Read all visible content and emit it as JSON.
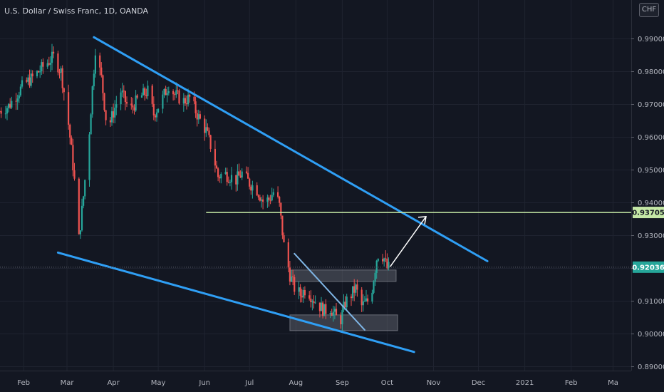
{
  "header": {
    "title": "U.S. Dollar / Swiss Franc, 1D, OANDA",
    "currency": "CHF"
  },
  "colors": {
    "background": "#131722",
    "up": "#26a69a",
    "down": "#ef5350",
    "trendline": "#2f9ff5",
    "level": "#c5e8a6",
    "last_price_badge": "#26a69a",
    "zone_fill": "#787b86"
  },
  "chart_data": {
    "type": "candlestick",
    "instrument": "U.S. Dollar / Swiss Franc",
    "timeframe": "1D",
    "source": "OANDA",
    "ylim": [
      0.887,
      1.0
    ],
    "y_ticks": [
      "0.99000",
      "0.98000",
      "0.97000",
      "0.96000",
      "0.95000",
      "0.94000",
      "0.93000",
      "0.92000",
      "0.91000",
      "0.90000",
      "0.89000"
    ],
    "x_ticks": [
      "Feb",
      "Mar",
      "Apr",
      "May",
      "Jun",
      "Jul",
      "Aug",
      "Sep",
      "Oct",
      "Nov",
      "Dec",
      "2021",
      "Feb",
      "Ma"
    ],
    "horizontal_level": {
      "value": 0.93705,
      "label": "0.93705"
    },
    "last_price": {
      "value": 0.92036,
      "label": "0.92036"
    },
    "trendlines": [
      {
        "name": "upper channel",
        "from": {
          "date": "2020-03-19",
          "price": 0.9905
        },
        "to": {
          "date": "2020-12-07",
          "price": 0.9222
        }
      },
      {
        "name": "lower channel",
        "from": {
          "date": "2020-02-24",
          "price": 0.9248
        },
        "to": {
          "date": "2020-10-19",
          "price": 0.8945
        }
      },
      {
        "name": "short downtrend",
        "from": {
          "date": "2020-07-31",
          "price": 0.9245
        },
        "to": {
          "date": "2020-09-16",
          "price": 0.9012
        }
      }
    ],
    "zones": [
      {
        "name": "upper demand zone",
        "x_from": "2020-07-28",
        "x_to": "2020-10-07",
        "y_from": 0.916,
        "y_to": 0.9195
      },
      {
        "name": "lower demand zone",
        "x_from": "2020-07-28",
        "x_to": "2020-10-08",
        "y_from": 0.901,
        "y_to": 0.9058
      }
    ],
    "projection_arrow": {
      "from": {
        "date": "2020-10-03",
        "price": 0.9205
      },
      "to": {
        "date": "2020-10-27",
        "price": 0.9358
      }
    },
    "ohlc_anchors": [
      [
        "2020-01-16",
        0.968
      ],
      [
        "2020-01-22",
        0.9695
      ],
      [
        "2020-02-01",
        0.976
      ],
      [
        "2020-02-08",
        0.9785
      ],
      [
        "2020-02-14",
        0.9815
      ],
      [
        "2020-02-21",
        0.9845
      ],
      [
        "2020-02-26",
        0.98
      ],
      [
        "2020-03-01",
        0.968
      ],
      [
        "2020-03-04",
        0.956
      ],
      [
        "2020-03-07",
        0.942
      ],
      [
        "2020-03-09",
        0.929
      ],
      [
        "2020-03-12",
        0.942
      ],
      [
        "2020-03-16",
        0.962
      ],
      [
        "2020-03-18",
        0.975
      ],
      [
        "2020-03-20",
        0.987
      ],
      [
        "2020-03-24",
        0.978
      ],
      [
        "2020-03-28",
        0.962
      ],
      [
        "2020-04-02",
        0.969
      ],
      [
        "2020-04-06",
        0.974
      ],
      [
        "2020-04-12",
        0.968
      ],
      [
        "2020-04-18",
        0.972
      ],
      [
        "2020-04-24",
        0.974
      ],
      [
        "2020-04-28",
        0.967
      ],
      [
        "2020-05-03",
        0.971
      ],
      [
        "2020-05-08",
        0.976
      ],
      [
        "2020-05-12",
        0.973
      ],
      [
        "2020-05-18",
        0.971
      ],
      [
        "2020-05-22",
        0.972
      ],
      [
        "2020-05-28",
        0.966
      ],
      [
        "2020-06-02",
        0.962
      ],
      [
        "2020-06-06",
        0.956
      ],
      [
        "2020-06-10",
        0.948
      ],
      [
        "2020-06-14",
        0.949
      ],
      [
        "2020-06-18",
        0.948
      ],
      [
        "2020-06-22",
        0.947
      ],
      [
        "2020-06-26",
        0.949
      ],
      [
        "2020-07-01",
        0.946
      ],
      [
        "2020-07-06",
        0.944
      ],
      [
        "2020-07-10",
        0.9405
      ],
      [
        "2020-07-14",
        0.941
      ],
      [
        "2020-07-18",
        0.944
      ],
      [
        "2020-07-21",
        0.939
      ],
      [
        "2020-07-24",
        0.927
      ],
      [
        "2020-07-28",
        0.918
      ],
      [
        "2020-07-31",
        0.914
      ],
      [
        "2020-08-04",
        0.912
      ],
      [
        "2020-08-08",
        0.914
      ],
      [
        "2020-08-12",
        0.911
      ],
      [
        "2020-08-16",
        0.909
      ],
      [
        "2020-08-20",
        0.907
      ],
      [
        "2020-08-24",
        0.908
      ],
      [
        "2020-08-28",
        0.905
      ],
      [
        "2020-08-31",
        0.9045
      ],
      [
        "2020-09-03",
        0.9095
      ],
      [
        "2020-09-07",
        0.912
      ],
      [
        "2020-09-10",
        0.914
      ],
      [
        "2020-09-14",
        0.9085
      ],
      [
        "2020-09-18",
        0.91
      ],
      [
        "2020-09-21",
        0.914
      ],
      [
        "2020-09-24",
        0.923
      ],
      [
        "2020-09-26",
        0.9255
      ],
      [
        "2020-09-29",
        0.923
      ],
      [
        "2020-10-01",
        0.92
      ],
      [
        "2020-10-03",
        0.9205
      ]
    ]
  }
}
